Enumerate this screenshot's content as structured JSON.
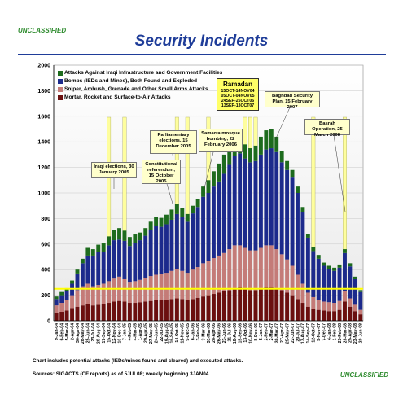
{
  "header": {
    "classification": "UNCLASSIFIED",
    "title": "Security Incidents"
  },
  "footer": {
    "note": "Chart includes potential attacks (IEDs/mines found and cleared) and executed attacks.",
    "source": "Sources:  SIGACTS (CF reports) as of 5JUL08; weekly beginning 3JAN04.",
    "classification": "UNCLASSIFIED"
  },
  "callouts": [
    {
      "id": "iraqi-elections",
      "text": "Iraqi elections, 30 January 2005"
    },
    {
      "id": "constitutional",
      "text": "Constitutional referendum, 15 October 2005"
    },
    {
      "id": "parliamentary",
      "text": "Parliamentary elections, 15 December 2005"
    },
    {
      "id": "samarra",
      "text": "Samarra mosque bombing, 22 February 2006"
    },
    {
      "id": "baghdad",
      "text": "Baghdad Security Plan, 15 February 2007"
    },
    {
      "id": "basrah",
      "text": "Basrah Operation, 25 March 2008"
    }
  ],
  "ramadan": {
    "title": "Ramadan",
    "lines": [
      "15OCT-14NOV04",
      "05OCT-04NOV05",
      "24SEP-25OCT06",
      "13SEP-13OCT07"
    ]
  },
  "colors": {
    "infrastructure": "#1d6b1d",
    "bombs": "#1c2a8c",
    "sniper": "#c47b78",
    "mortar": "#6b0f0f",
    "average_line": "#ffff00",
    "event_bar": "#ffff99"
  },
  "chart_data": {
    "type": "bar",
    "stacked": true,
    "ylim": [
      0,
      2000
    ],
    "yticks": [
      0,
      200,
      400,
      600,
      800,
      1000,
      1200,
      1400,
      1600,
      1800,
      2000
    ],
    "xtick_labels": [
      "9-Jan-04",
      "6-Feb-04",
      "5-Mar-04",
      "2-Apr-04",
      "30-Apr-04",
      "28-May-04",
      "25-Jun-04",
      "23-Jul-04",
      "20-Aug-04",
      "17-Sep-04",
      "15-Oct-04",
      "12-Nov-04",
      "10-Dec-04",
      "7-Jan-05",
      "4-Feb-05",
      "4-Mar-05",
      "1-Apr-05",
      "29-Apr-05",
      "27-May-05",
      "24-Jun-05",
      "22-Jul-05",
      "19-Aug-05",
      "16-Sep-05",
      "14-Oct-05",
      "11-Nov-05",
      "9-Dec-05",
      "6-Jan-06",
      "3-Feb-06",
      "3-Mar-06",
      "31-Mar-06",
      "28-Apr-06",
      "26-May-06",
      "23-Jun-06",
      "21-Jul-06",
      "18-Aug-06",
      "15-Sep-06",
      "13-Oct-06",
      "10-Nov-06",
      "8-Dec-06",
      "5-Jan-07",
      "2-Feb-07",
      "2-Mar-07",
      "30-Mar-07",
      "27-Apr-07",
      "25-May-07",
      "22-Jun-07",
      "20-Jul-07",
      "17-Aug-07",
      "14-Sep-07",
      "12-Oct-07",
      "9-Nov-07",
      "7-Dec-07",
      "4-Jan-08",
      "1-Feb-08",
      "29-Feb-08",
      "28-Mar-08",
      "25-Apr-08",
      "23-May-08",
      "20-Jun-08"
    ],
    "reference_line": 250,
    "legend_position": "top-left",
    "series": [
      {
        "name": "Attacks Against Iraqi Infrastructure and Government Facilities",
        "values": [
          20,
          25,
          25,
          25,
          30,
          35,
          60,
          50,
          55,
          65,
          70,
          80,
          90,
          80,
          70,
          65,
          60,
          60,
          65,
          70,
          70,
          75,
          80,
          80,
          70,
          60,
          60,
          65,
          80,
          100,
          120,
          140,
          150,
          150,
          130,
          120,
          110,
          110,
          120,
          140,
          150,
          150,
          120,
          90,
          70,
          60,
          50,
          40,
          30,
          30,
          30,
          25,
          25,
          25,
          25,
          30,
          25,
          20,
          15
        ]
      },
      {
        "name": "Bombs (IEDs and Mines), Both Found and Exploded",
        "values": [
          50,
          60,
          70,
          90,
          130,
          180,
          220,
          240,
          260,
          250,
          280,
          300,
          290,
          300,
          280,
          300,
          310,
          330,
          360,
          380,
          370,
          380,
          400,
          430,
          420,
          400,
          440,
          470,
          520,
          530,
          560,
          580,
          620,
          660,
          700,
          720,
          700,
          690,
          700,
          730,
          750,
          760,
          760,
          720,
          700,
          690,
          640,
          560,
          430,
          360,
          320,
          280,
          260,
          250,
          260,
          300,
          250,
          200,
          140
        ]
      },
      {
        "name": "Sniper, Ambush, Grenade and Other Small Arms Attacks",
        "values": [
          60,
          70,
          80,
          100,
          130,
          150,
          160,
          150,
          155,
          160,
          170,
          180,
          190,
          175,
          165,
          170,
          175,
          185,
          195,
          200,
          205,
          210,
          220,
          230,
          220,
          210,
          230,
          240,
          260,
          270,
          280,
          290,
          300,
          320,
          340,
          330,
          320,
          310,
          310,
          320,
          330,
          330,
          310,
          280,
          260,
          230,
          190,
          150,
          110,
          90,
          80,
          70,
          70,
          65,
          70,
          80,
          65,
          50,
          35
        ]
      },
      {
        "name": "Mortar, Rocket and Surface-to-Air Attacks",
        "values": [
          60,
          70,
          80,
          100,
          110,
          120,
          130,
          120,
          125,
          130,
          140,
          150,
          155,
          150,
          140,
          140,
          145,
          150,
          155,
          160,
          160,
          165,
          170,
          175,
          170,
          165,
          170,
          180,
          190,
          200,
          210,
          220,
          230,
          240,
          250,
          260,
          250,
          240,
          240,
          250,
          260,
          260,
          250,
          240,
          220,
          200,
          170,
          140,
          110,
          95,
          85,
          80,
          75,
          75,
          85,
          150,
          110,
          75,
          50
        ]
      }
    ]
  }
}
